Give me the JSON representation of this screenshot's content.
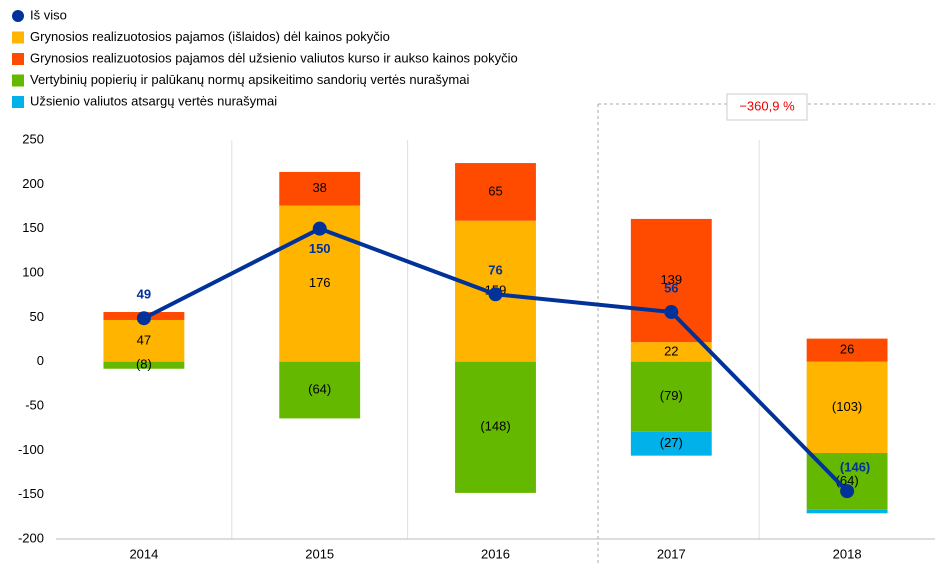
{
  "chart_data": {
    "type": "bar",
    "categories": [
      "2014",
      "2015",
      "2016",
      "2017",
      "2018"
    ],
    "series": [
      {
        "name": "Grynosios realizuotosios pajamos (išlaidos) dėl kainos pokyčio",
        "color": "#ffb400",
        "values": [
          47,
          176,
          159,
          22,
          -103
        ],
        "value_labels": [
          "47",
          "176",
          "159",
          "22",
          "(103)"
        ]
      },
      {
        "name": "Grynosios realizuotosios pajamos dėl užsienio valiutos kurso ir aukso kainos pokyčio",
        "color": "#ff4b00",
        "values": [
          9,
          38,
          65,
          139,
          26
        ],
        "value_labels": [
          null,
          "38",
          "65",
          "139",
          "26"
        ]
      },
      {
        "name": " Vertybinių popierių ir palūkanų normų apsikeitimo sandorių vertės nurašymai",
        "color": "#65b800",
        "values": [
          -8,
          -64,
          -148,
          -79,
          -64
        ],
        "value_labels": [
          "(8)",
          "(64)",
          "(148)",
          "(79)",
          "(64)"
        ]
      },
      {
        "name": "Užsienio valiutos atsargų vertės nurašymai",
        "color": "#00b1ea",
        "values": [
          null,
          null,
          null,
          -27,
          -4
        ],
        "value_labels": [
          null,
          null,
          null,
          "(27)",
          null
        ]
      }
    ],
    "line": {
      "name": "Iš viso",
      "color": "#003299",
      "type": "line",
      "values": [
        49,
        150,
        76,
        56,
        -146
      ],
      "value_labels": [
        "49",
        "150",
        "76",
        "56",
        "(146)"
      ]
    },
    "annotation": "−360,9 %",
    "ylim": [
      -200,
      250
    ],
    "yticks": [
      -200,
      -150,
      -100,
      -50,
      0,
      50,
      100,
      150,
      200,
      250
    ]
  }
}
